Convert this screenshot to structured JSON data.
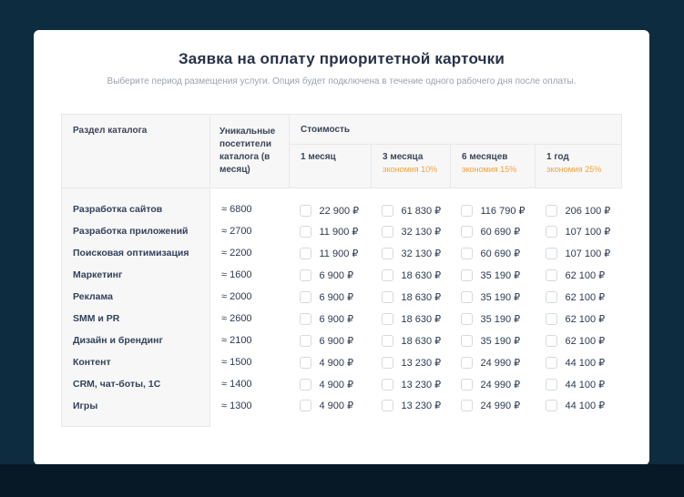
{
  "page": {
    "title": "Заявка на оплату приоритетной карточки",
    "subtitle": "Выберите период размещения услуги. Опция будет подключена в течение одного рабочего дня после оплаты."
  },
  "table": {
    "col_category": "Раздел каталога",
    "col_visitors": "Уникальные посетители каталога (в месяц)",
    "col_cost": "Стоимость",
    "periods": [
      {
        "label": "1 месяц",
        "discount": ""
      },
      {
        "label": "3 месяца",
        "discount": "экономия 10%"
      },
      {
        "label": "6 месяцев",
        "discount": "экономия 15%"
      },
      {
        "label": "1 год",
        "discount": "экономия 25%"
      }
    ],
    "rows": [
      {
        "category": "Разработка сайтов",
        "visitors": "≈ 6800",
        "prices": [
          "22 900 ₽",
          "61 830 ₽",
          "116 790 ₽",
          "206 100 ₽"
        ]
      },
      {
        "category": "Разработка приложений",
        "visitors": "≈ 2700",
        "prices": [
          "11 900 ₽",
          "32 130 ₽",
          "60 690 ₽",
          "107 100 ₽"
        ]
      },
      {
        "category": "Поисковая оптимизация",
        "visitors": "≈ 2200",
        "prices": [
          "11 900 ₽",
          "32 130 ₽",
          "60 690 ₽",
          "107 100 ₽"
        ]
      },
      {
        "category": "Маркетинг",
        "visitors": "≈ 1600",
        "prices": [
          "6 900 ₽",
          "18 630 ₽",
          "35 190 ₽",
          "62 100 ₽"
        ]
      },
      {
        "category": "Реклама",
        "visitors": "≈ 2000",
        "prices": [
          "6 900 ₽",
          "18 630 ₽",
          "35 190 ₽",
          "62 100 ₽"
        ]
      },
      {
        "category": "SMM и PR",
        "visitors": "≈ 2600",
        "prices": [
          "6 900 ₽",
          "18 630 ₽",
          "35 190 ₽",
          "62 100 ₽"
        ]
      },
      {
        "category": "Дизайн и брендинг",
        "visitors": "≈ 2100",
        "prices": [
          "6 900 ₽",
          "18 630 ₽",
          "35 190 ₽",
          "62 100 ₽"
        ]
      },
      {
        "category": "Контент",
        "visitors": "≈ 1500",
        "prices": [
          "4 900 ₽",
          "13 230 ₽",
          "24 990 ₽",
          "44 100 ₽"
        ]
      },
      {
        "category": "CRM, чат-боты, 1С",
        "visitors": "≈ 1400",
        "prices": [
          "4 900 ₽",
          "13 230 ₽",
          "24 990 ₽",
          "44 100 ₽"
        ]
      },
      {
        "category": "Игры",
        "visitors": "≈ 1300",
        "prices": [
          "4 900 ₽",
          "13 230 ₽",
          "24 990 ₽",
          "44 100 ₽"
        ]
      }
    ]
  },
  "colors": {
    "background": "#0e2c3f",
    "footer_strip": "#071826",
    "card": "#ffffff",
    "header_bg": "#f7f7f8",
    "accent_orange": "#f2a23a"
  },
  "checkbox_state": "unchecked"
}
